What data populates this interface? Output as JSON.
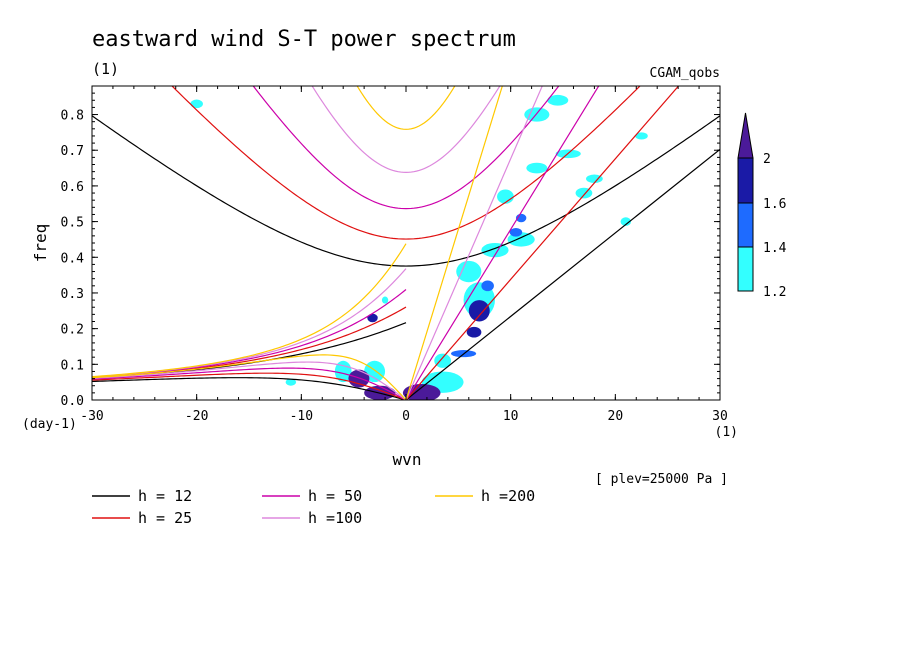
{
  "chart_data": {
    "type": "heatmap",
    "title": "eastward wind S-T power spectrum",
    "subtitle_left": "(1)",
    "subtitle_right": "CGAM_qobs",
    "xlabel": "wvn",
    "ylabel": "freq",
    "x_unit": "(1)",
    "y_unit": "(day-1)",
    "annotation": "[ plev=25000 Pa ]",
    "xlim": [
      -30,
      30
    ],
    "ylim": [
      0,
      0.88
    ],
    "x_ticks": [
      "-30",
      "-20",
      "-10",
      "0",
      "10",
      "20",
      "30"
    ],
    "y_ticks": [
      "0.0",
      "0.1",
      "0.2",
      "0.3",
      "0.4",
      "0.5",
      "0.6",
      "0.7",
      "0.8"
    ],
    "colorbar": {
      "levels": [
        "1.2",
        "1.4",
        "1.6",
        "2"
      ],
      "colors": [
        "#33ffff",
        "#1e6bff",
        "#1a1aa6",
        "#4b1a99"
      ]
    },
    "dispersion_curves": [
      {
        "name": "h = 12",
        "h": 12,
        "color": "#000000"
      },
      {
        "name": "h = 25",
        "h": 25,
        "color": "#e01010"
      },
      {
        "name": "h = 50",
        "h": 50,
        "color": "#cc00aa"
      },
      {
        "name": "h =100",
        "h": 100,
        "color": "#dd88dd"
      },
      {
        "name": "h =200",
        "h": 200,
        "color": "#ffc800"
      }
    ],
    "spectral_peaks": [
      {
        "x": -4.5,
        "y": 0.06,
        "rx": 1.0,
        "ry": 0.025,
        "level": 3
      },
      {
        "x": -2.5,
        "y": 0.02,
        "rx": 1.5,
        "ry": 0.02,
        "level": 3
      },
      {
        "x": 1.5,
        "y": 0.02,
        "rx": 1.8,
        "ry": 0.025,
        "level": 3
      },
      {
        "x": -3.2,
        "y": 0.23,
        "rx": 0.5,
        "ry": 0.012,
        "level": 2
      },
      {
        "x": 7.0,
        "y": 0.25,
        "rx": 1.0,
        "ry": 0.03,
        "level": 2
      },
      {
        "x": 6.5,
        "y": 0.19,
        "rx": 0.7,
        "ry": 0.015,
        "level": 2
      },
      {
        "x": 7.8,
        "y": 0.32,
        "rx": 0.6,
        "ry": 0.015,
        "level": 1
      },
      {
        "x": 10.5,
        "y": 0.47,
        "rx": 0.6,
        "ry": 0.012,
        "level": 1
      },
      {
        "x": 11.0,
        "y": 0.51,
        "rx": 0.5,
        "ry": 0.012,
        "level": 1
      },
      {
        "x": 5.5,
        "y": 0.13,
        "rx": 1.2,
        "ry": 0.01,
        "level": 1
      },
      {
        "x": 3.5,
        "y": 0.05,
        "rx": 2.0,
        "ry": 0.03,
        "level": 0
      },
      {
        "x": 7.0,
        "y": 0.28,
        "rx": 1.5,
        "ry": 0.05,
        "level": 0
      },
      {
        "x": 6.0,
        "y": 0.36,
        "rx": 1.2,
        "ry": 0.03,
        "level": 0
      },
      {
        "x": 8.5,
        "y": 0.42,
        "rx": 1.3,
        "ry": 0.02,
        "level": 0
      },
      {
        "x": 11.0,
        "y": 0.45,
        "rx": 1.3,
        "ry": 0.02,
        "level": 0
      },
      {
        "x": 9.5,
        "y": 0.57,
        "rx": 0.8,
        "ry": 0.02,
        "level": 0
      },
      {
        "x": 12.5,
        "y": 0.65,
        "rx": 1.0,
        "ry": 0.015,
        "level": 0
      },
      {
        "x": 15.5,
        "y": 0.69,
        "rx": 1.2,
        "ry": 0.012,
        "level": 0
      },
      {
        "x": 18.0,
        "y": 0.62,
        "rx": 0.8,
        "ry": 0.012,
        "level": 0
      },
      {
        "x": 12.5,
        "y": 0.8,
        "rx": 1.2,
        "ry": 0.02,
        "level": 0
      },
      {
        "x": 14.5,
        "y": 0.84,
        "rx": 1.0,
        "ry": 0.015,
        "level": 0
      },
      {
        "x": 17.0,
        "y": 0.58,
        "rx": 0.8,
        "ry": 0.015,
        "level": 0
      },
      {
        "x": 21.0,
        "y": 0.5,
        "rx": 0.5,
        "ry": 0.012,
        "level": 0
      },
      {
        "x": -20.0,
        "y": 0.83,
        "rx": 0.6,
        "ry": 0.012,
        "level": 0
      },
      {
        "x": -3.0,
        "y": 0.08,
        "rx": 1.0,
        "ry": 0.03,
        "level": 0
      },
      {
        "x": -6.0,
        "y": 0.08,
        "rx": 0.8,
        "ry": 0.03,
        "level": 0
      },
      {
        "x": 3.5,
        "y": 0.11,
        "rx": 0.8,
        "ry": 0.02,
        "level": 0
      },
      {
        "x": -11.0,
        "y": 0.05,
        "rx": 0.5,
        "ry": 0.01,
        "level": 0
      },
      {
        "x": -2.0,
        "y": 0.28,
        "rx": 0.3,
        "ry": 0.01,
        "level": 0
      },
      {
        "x": 22.5,
        "y": 0.74,
        "rx": 0.6,
        "ry": 0.01,
        "level": 0
      }
    ]
  }
}
